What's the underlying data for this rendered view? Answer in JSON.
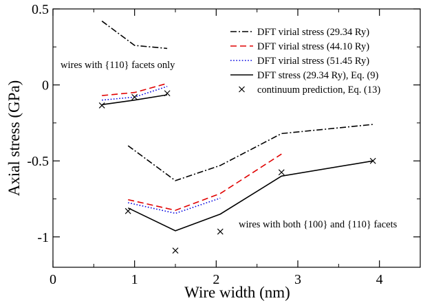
{
  "chart_data": {
    "type": "line",
    "title": "",
    "xlabel": "Wire width (nm)",
    "ylabel": "Axial stress (GPa)",
    "xlim": [
      0,
      4.5
    ],
    "ylim": [
      -1.2,
      0.5
    ],
    "xticks": [
      0,
      1,
      2,
      3,
      4
    ],
    "yticks": [
      0.5,
      0,
      -0.5,
      -1
    ],
    "xtick_labels": [
      "0",
      "1",
      "2",
      "3",
      "4"
    ],
    "ytick_labels": [
      "0.5",
      "0",
      "-0.5",
      "-1"
    ],
    "grid": false,
    "legend_position": "top-right",
    "series": [
      {
        "name": "DFT virial stress (29.34 Ry)",
        "style": "dash-dot",
        "color": "#000000",
        "segments": [
          [
            [
              0.6,
              0.42
            ],
            [
              1.0,
              0.26
            ],
            [
              1.4,
              0.24
            ]
          ],
          [
            [
              0.92,
              -0.4
            ],
            [
              1.5,
              -0.63
            ],
            [
              2.05,
              -0.53
            ],
            [
              2.8,
              -0.32
            ],
            [
              3.92,
              -0.26
            ]
          ]
        ]
      },
      {
        "name": "DFT virial stress (44.10 Ry)",
        "style": "dashed",
        "color": "#e00000",
        "segments": [
          [
            [
              0.6,
              -0.07
            ],
            [
              1.0,
              -0.05
            ],
            [
              1.4,
              0.01
            ]
          ],
          [
            [
              0.92,
              -0.755
            ],
            [
              1.5,
              -0.825
            ],
            [
              2.05,
              -0.715
            ],
            [
              2.8,
              -0.455
            ]
          ]
        ]
      },
      {
        "name": "DFT virial stress (51.45 Ry)",
        "style": "dotted",
        "color": "#0000e0",
        "segments": [
          [
            [
              0.6,
              -0.1
            ],
            [
              1.0,
              -0.08
            ],
            [
              1.4,
              -0.01
            ]
          ],
          [
            [
              0.92,
              -0.775
            ],
            [
              1.5,
              -0.845
            ],
            [
              2.05,
              -0.745
            ]
          ]
        ]
      },
      {
        "name": "DFT stress (29.34 Ry), Eq. (9)",
        "style": "solid",
        "color": "#000000",
        "segments": [
          [
            [
              0.6,
              -0.13
            ],
            [
              1.0,
              -0.1
            ],
            [
              1.4,
              -0.065
            ]
          ],
          [
            [
              0.92,
              -0.81
            ],
            [
              1.5,
              -0.96
            ],
            [
              2.05,
              -0.85
            ],
            [
              2.8,
              -0.6
            ],
            [
              3.92,
              -0.5
            ]
          ]
        ]
      },
      {
        "name": "continuum prediction, Eq. (13)",
        "style": "markers",
        "marker": "x",
        "color": "#000000",
        "points": [
          [
            0.6,
            -0.135
          ],
          [
            1.0,
            -0.08
          ],
          [
            1.4,
            -0.055
          ],
          [
            0.92,
            -0.83
          ],
          [
            1.5,
            -1.09
          ],
          [
            2.05,
            -0.965
          ],
          [
            2.8,
            -0.575
          ],
          [
            3.92,
            -0.5
          ]
        ]
      }
    ],
    "annotations": [
      "wires with {110} facets only",
      "wires with both {100} and {110} facets"
    ]
  }
}
